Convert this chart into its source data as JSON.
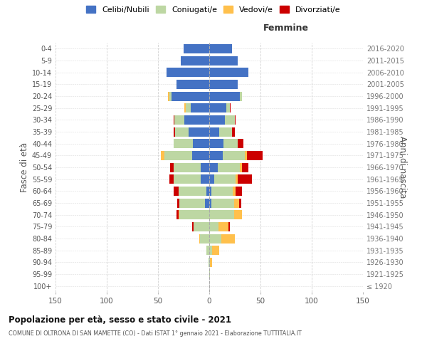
{
  "age_groups": [
    "100+",
    "95-99",
    "90-94",
    "85-89",
    "80-84",
    "75-79",
    "70-74",
    "65-69",
    "60-64",
    "55-59",
    "50-54",
    "45-49",
    "40-44",
    "35-39",
    "30-34",
    "25-29",
    "20-24",
    "15-19",
    "10-14",
    "5-9",
    "0-4"
  ],
  "birth_years": [
    "≤ 1920",
    "1921-1925",
    "1926-1930",
    "1931-1935",
    "1936-1940",
    "1941-1945",
    "1946-1950",
    "1951-1955",
    "1956-1960",
    "1961-1965",
    "1966-1970",
    "1971-1975",
    "1976-1980",
    "1981-1985",
    "1986-1990",
    "1991-1995",
    "1996-2000",
    "2001-2005",
    "2006-2010",
    "2011-2015",
    "2016-2020"
  ],
  "males": {
    "celibi": [
      0,
      0,
      0,
      0,
      0,
      0,
      0,
      4,
      3,
      8,
      8,
      17,
      16,
      20,
      24,
      18,
      37,
      32,
      42,
      28,
      25
    ],
    "coniugati": [
      0,
      0,
      1,
      3,
      9,
      15,
      29,
      25,
      27,
      27,
      27,
      27,
      19,
      13,
      10,
      5,
      2,
      0,
      0,
      0,
      0
    ],
    "vedovi": [
      0,
      0,
      0,
      0,
      1,
      0,
      1,
      0,
      0,
      0,
      0,
      3,
      0,
      0,
      0,
      1,
      1,
      0,
      0,
      0,
      0
    ],
    "divorziati": [
      0,
      0,
      0,
      0,
      0,
      2,
      2,
      2,
      5,
      4,
      3,
      0,
      0,
      2,
      1,
      0,
      0,
      0,
      0,
      0,
      0
    ]
  },
  "females": {
    "nubili": [
      0,
      0,
      0,
      0,
      0,
      0,
      0,
      2,
      2,
      5,
      8,
      13,
      14,
      10,
      15,
      17,
      30,
      28,
      38,
      28,
      22
    ],
    "coniugate": [
      0,
      1,
      1,
      3,
      12,
      9,
      24,
      22,
      21,
      21,
      22,
      22,
      14,
      12,
      10,
      3,
      2,
      0,
      0,
      0,
      0
    ],
    "vedove": [
      0,
      0,
      2,
      7,
      13,
      10,
      8,
      5,
      3,
      2,
      2,
      2,
      0,
      0,
      0,
      0,
      0,
      0,
      0,
      0,
      0
    ],
    "divorziate": [
      0,
      0,
      0,
      0,
      0,
      1,
      0,
      2,
      6,
      14,
      6,
      15,
      5,
      3,
      1,
      1,
      0,
      0,
      0,
      0,
      0
    ]
  },
  "colors": {
    "celibi_nubili": "#4472c4",
    "coniugati": "#bdd7a3",
    "vedovi": "#ffc04c",
    "divorziati": "#cc0000"
  },
  "xlim": 150,
  "title": "Popolazione per età, sesso e stato civile - 2021",
  "subtitle": "COMUNE DI OLTRONA DI SAN MAMETTE (CO) - Dati ISTAT 1° gennaio 2021 - Elaborazione TUTTITALIA.IT",
  "ylabel_left": "Fasce di età",
  "ylabel_right": "Anni di nascita",
  "xlabel_right": "Femmine",
  "legend_labels": [
    "Celibi/Nubili",
    "Coniugati/e",
    "Vedovi/e",
    "Divorziati/e"
  ],
  "background_color": "#ffffff",
  "grid_color": "#cccccc"
}
